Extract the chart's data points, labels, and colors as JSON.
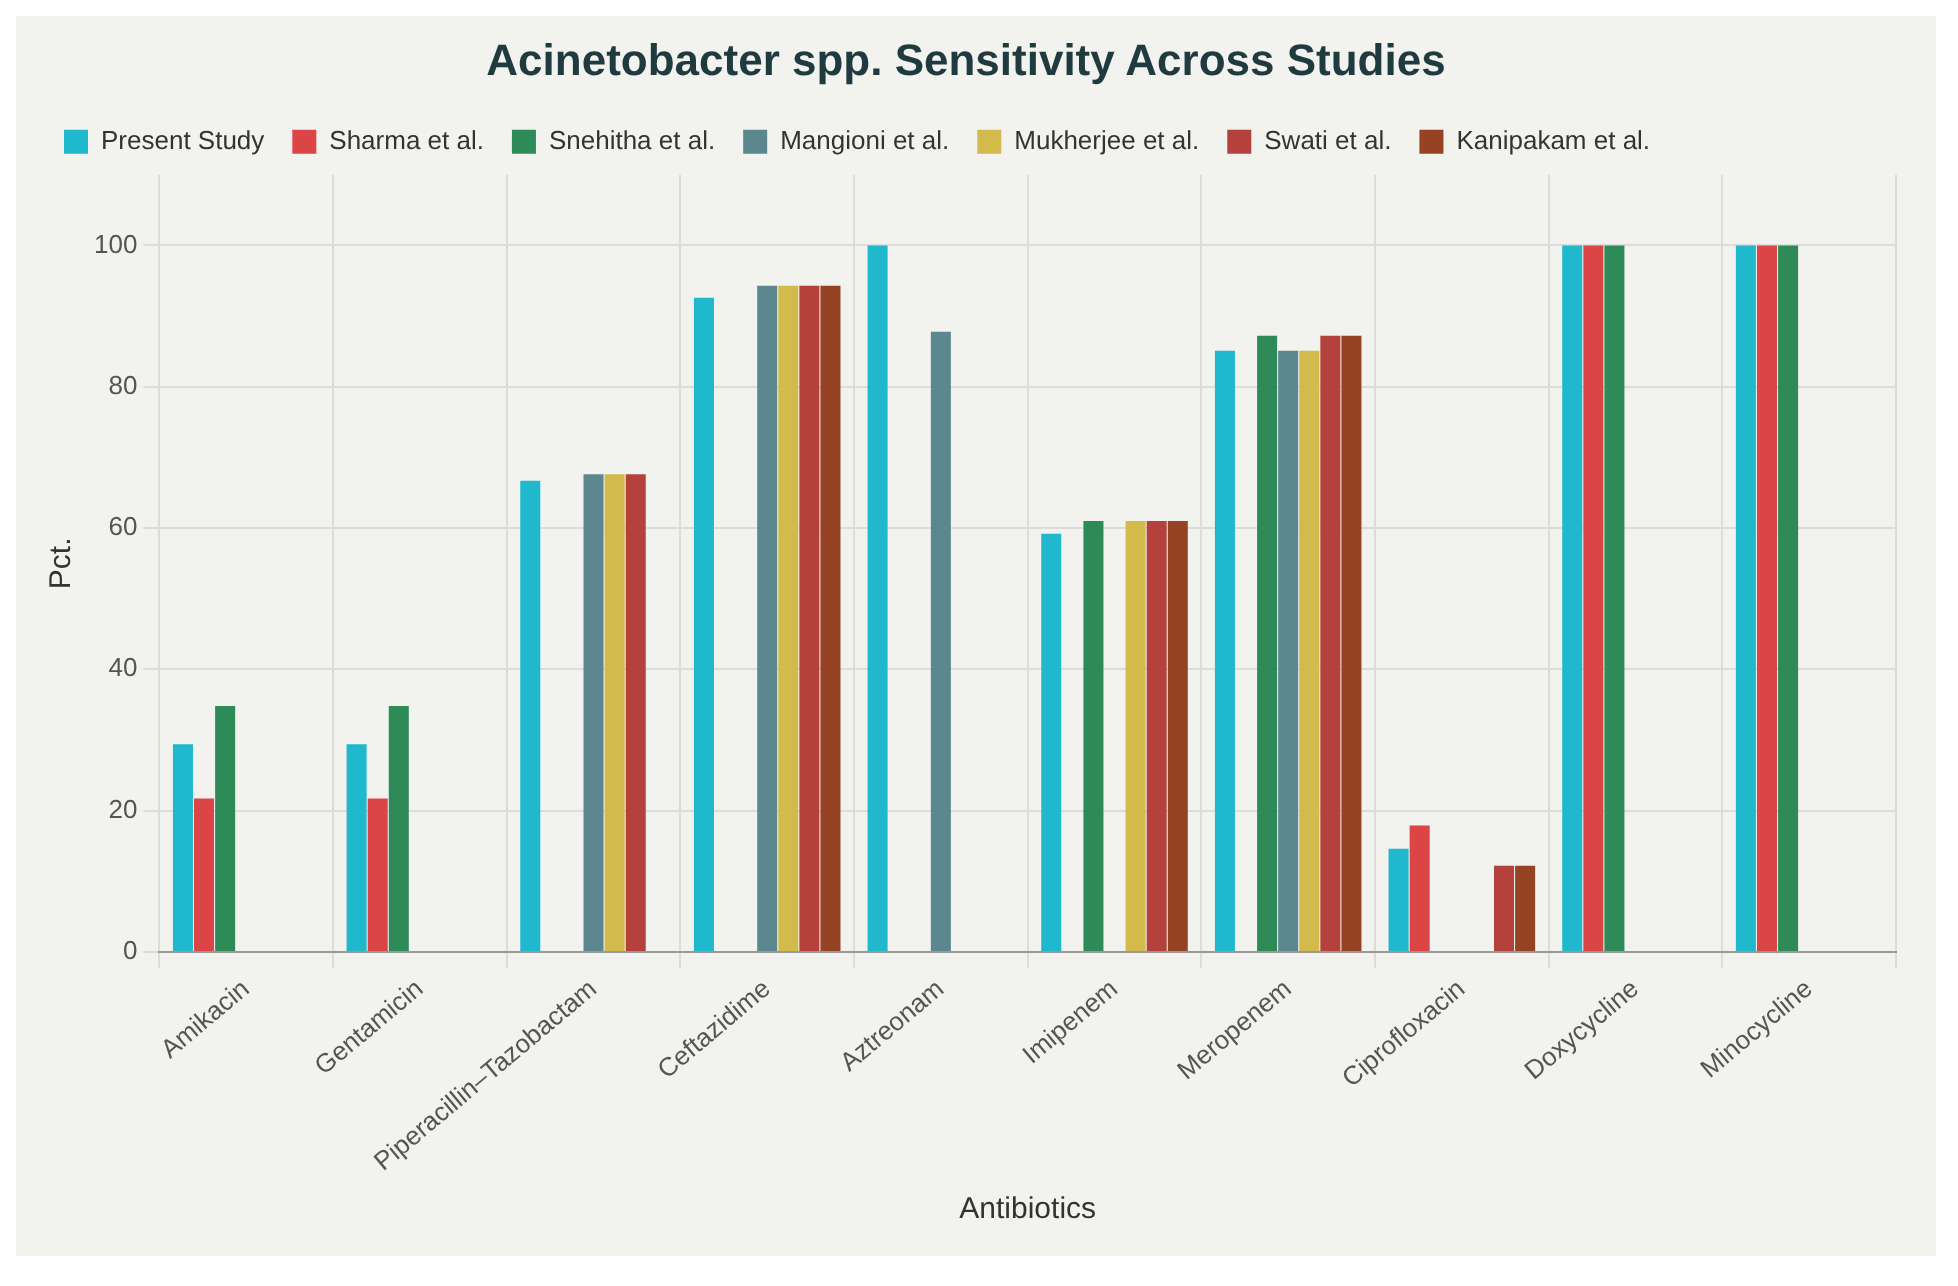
{
  "chart_data": {
    "type": "bar",
    "title": "Acinetobacter spp. Sensitivity Across Studies",
    "xlabel": "Antibiotics",
    "ylabel": "Pct.",
    "categories": [
      "Amikacin",
      "Gentamicin",
      "Piperacillin–Tazobactam",
      "Ceftazidime",
      "Aztreonam",
      "Imipenem",
      "Meropenem",
      "Ciprofloxacin",
      "Doxycycline",
      "Minocycline"
    ],
    "series": [
      {
        "name": "Present Study",
        "color": "#1fb8cd",
        "values": [
          29.4,
          29.4,
          66.7,
          92.6,
          100,
          59.2,
          85.1,
          14.6,
          100,
          100
        ]
      },
      {
        "name": "Sharma et al.",
        "color": "#db4545",
        "values": [
          21.7,
          21.7,
          null,
          null,
          null,
          null,
          null,
          17.9,
          100,
          100
        ]
      },
      {
        "name": "Snehitha et al.",
        "color": "#2e8b57",
        "values": [
          34.8,
          34.8,
          null,
          null,
          null,
          61,
          87.2,
          null,
          100,
          100
        ]
      },
      {
        "name": "Mangioni et al.",
        "color": "#5d878f",
        "values": [
          null,
          null,
          67.6,
          94.3,
          87.8,
          null,
          85.1,
          null,
          null,
          null
        ]
      },
      {
        "name": "Mukherjee et al.",
        "color": "#d2ba4c",
        "values": [
          null,
          null,
          67.6,
          94.3,
          null,
          61,
          85.1,
          null,
          null,
          null
        ]
      },
      {
        "name": "Swati et al.",
        "color": "#b4413c",
        "values": [
          null,
          null,
          67.6,
          94.3,
          null,
          61,
          87.2,
          12.2,
          null,
          null
        ]
      },
      {
        "name": "Kanipakam et al.",
        "color": "#964325",
        "values": [
          null,
          null,
          null,
          94.3,
          null,
          61,
          87.2,
          12.2,
          null,
          null
        ]
      }
    ],
    "ylim": [
      0,
      110
    ],
    "yticks": [
      0,
      20,
      40,
      60,
      80,
      100
    ],
    "grid": true,
    "legend": "top"
  }
}
